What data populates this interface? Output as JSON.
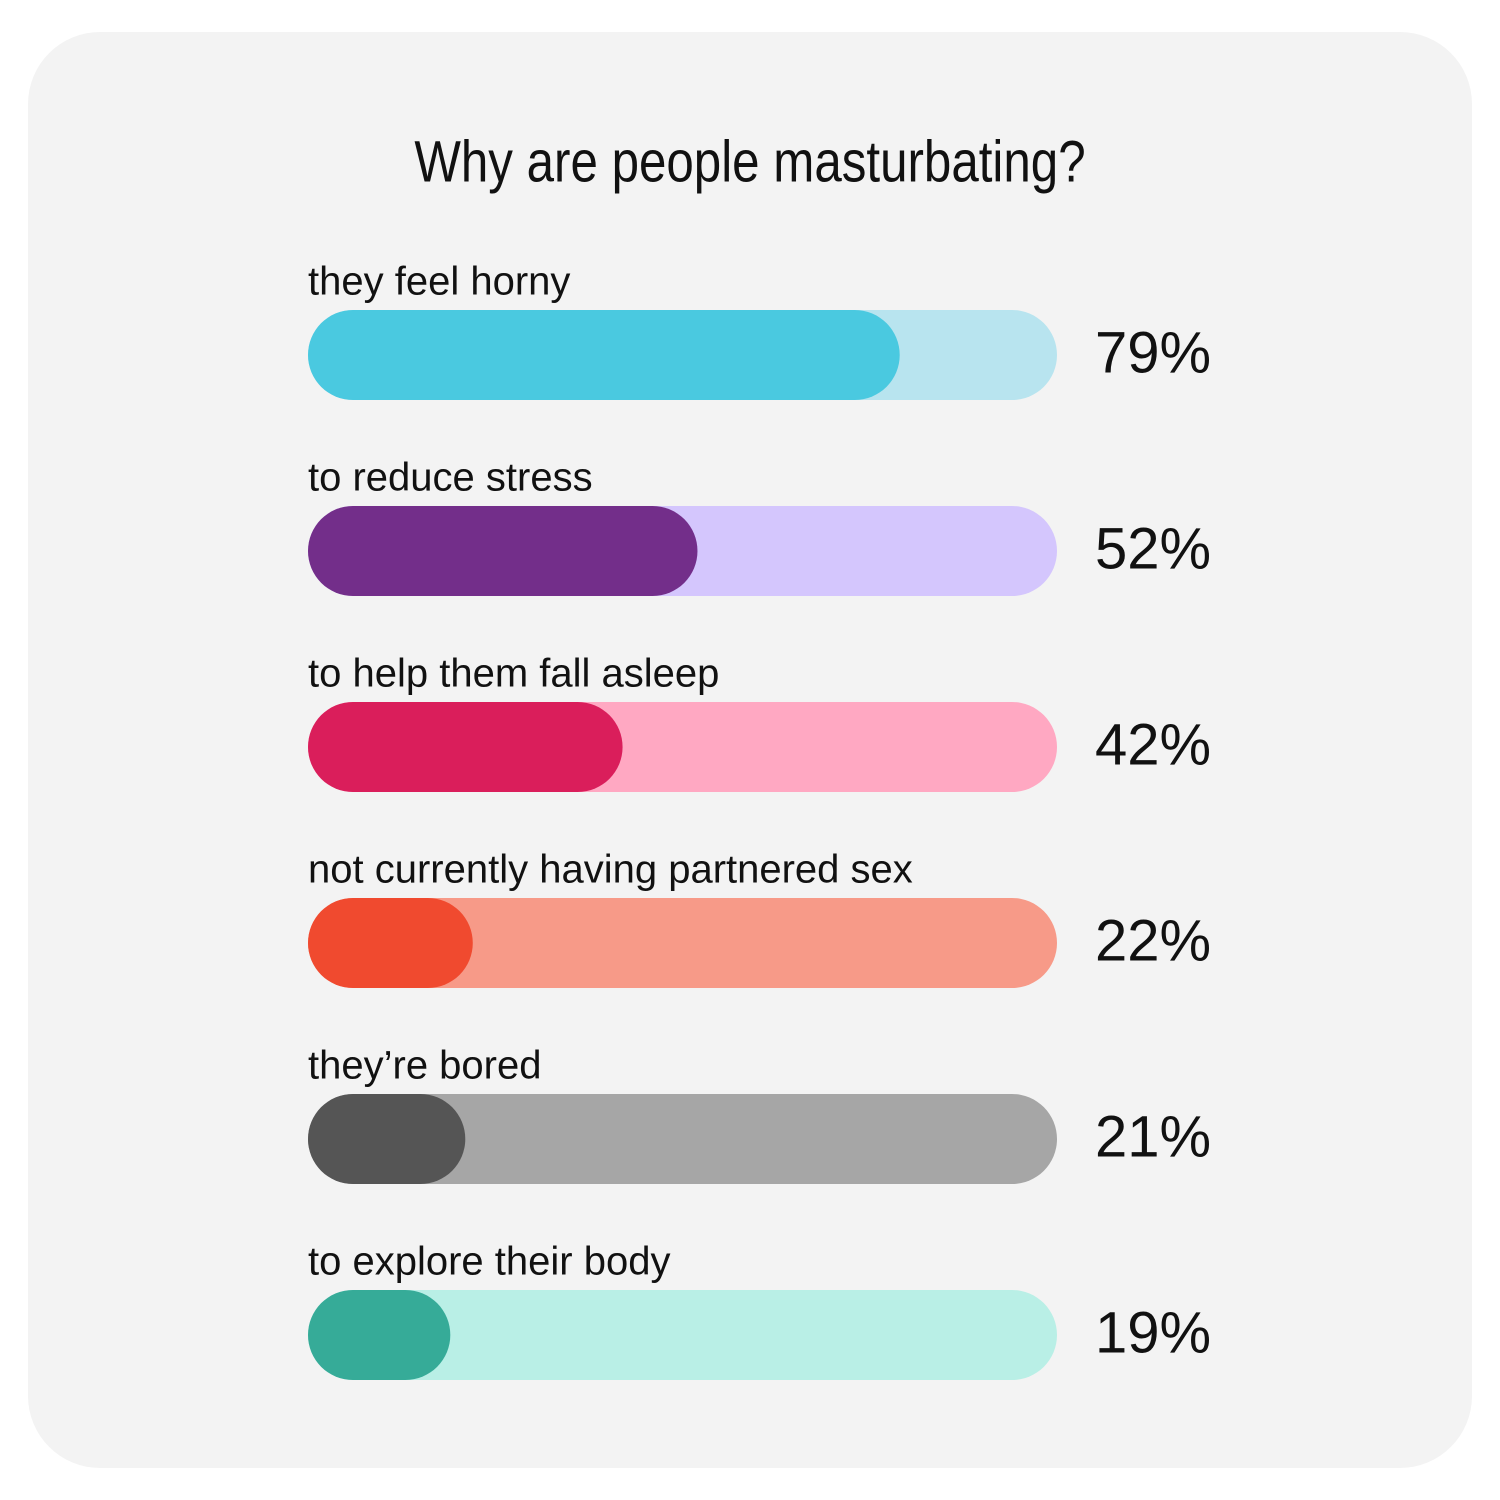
{
  "chart_data": {
    "type": "progress-bar",
    "title": "Why are people masturbating?",
    "categories": [
      "they feel horny",
      "to reduce stress",
      "to help them fall asleep",
      "not currently having partnered sex",
      "they’re bored",
      "to explore their body"
    ],
    "values": [
      79,
      52,
      42,
      22,
      21,
      19
    ],
    "value_labels": [
      "79%",
      "52%",
      "42%",
      "22%",
      "21%",
      "19%"
    ],
    "xlim": [
      0,
      100
    ],
    "colors": [
      "#4ac9e0",
      "#732e8a",
      "#da1e5b",
      "#f04a2f",
      "#555555",
      "#36ab98"
    ],
    "track_colors": [
      "#b8e4ef",
      "#d4c6fd",
      "#ffa8c2",
      "#f79a88",
      "#a6a6a6",
      "#b9efe6"
    ]
  }
}
